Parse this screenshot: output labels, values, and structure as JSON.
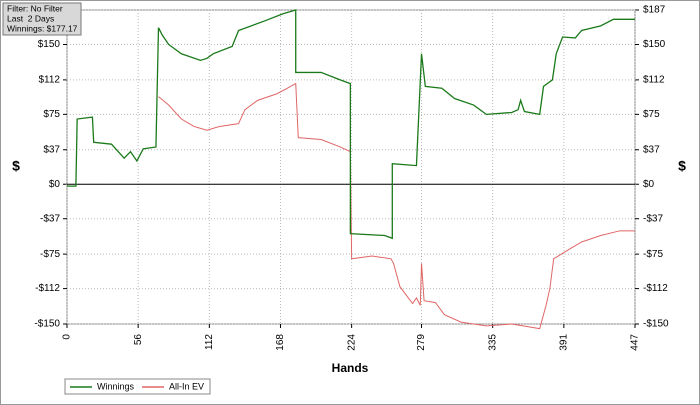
{
  "chart_data": {
    "type": "line",
    "info_box": [
      "Filter: No Filter",
      "Last  2 Days",
      "Winnings: $177.17"
    ],
    "x_label": "Hands",
    "y_label": "$",
    "xlim": [
      0,
      447
    ],
    "xticks": [
      0,
      56,
      112,
      168,
      224,
      279,
      335,
      391,
      447
    ],
    "ylim": [
      -150,
      187
    ],
    "yticks": [
      {
        "value": 187,
        "label": "$187"
      },
      {
        "value": 150,
        "label": "$150"
      },
      {
        "value": 112,
        "label": "$112"
      },
      {
        "value": 75,
        "label": "$75"
      },
      {
        "value": 37,
        "label": "$37"
      },
      {
        "value": 0,
        "label": "$0"
      },
      {
        "value": -37,
        "label": "-$37"
      },
      {
        "value": -75,
        "label": "-$75"
      },
      {
        "value": -112,
        "label": "-$112"
      },
      {
        "value": -150,
        "label": "-$150"
      }
    ],
    "grid": true,
    "legend": "bottom-left",
    "series": [
      {
        "name": "Winnings",
        "color": "#1a7a1a",
        "x": [
          0,
          7,
          8,
          20,
          21,
          35,
          45,
          50,
          55,
          60,
          70,
          72,
          75,
          80,
          90,
          105,
          110,
          115,
          130,
          135,
          145,
          155,
          170,
          180,
          180,
          200,
          215,
          223,
          223,
          250,
          256,
          256,
          275,
          279,
          282,
          295,
          305,
          320,
          330,
          350,
          355,
          357,
          360,
          372,
          375,
          382,
          385,
          390,
          400,
          405,
          420,
          430,
          447
        ],
        "values": [
          -2,
          -2,
          70,
          72,
          45,
          43,
          28,
          35,
          25,
          38,
          40,
          168,
          160,
          150,
          140,
          133,
          135,
          140,
          148,
          165,
          170,
          175,
          183,
          187,
          120,
          120,
          112,
          108,
          -53,
          -55,
          -58,
          22,
          20,
          140,
          105,
          103,
          92,
          85,
          75,
          77,
          80,
          90,
          78,
          75,
          105,
          112,
          140,
          158,
          157,
          165,
          170,
          177,
          177
        ]
      },
      {
        "name": "All-In EV",
        "color": "#e06666",
        "x": [
          72,
          80,
          90,
          100,
          110,
          120,
          135,
          140,
          150,
          165,
          172,
          180,
          182,
          200,
          215,
          223,
          224,
          240,
          255,
          257,
          262,
          272,
          275,
          278,
          279,
          281,
          290,
          297,
          310,
          330,
          350,
          372,
          377,
          380,
          383,
          395,
          405,
          420,
          435,
          447
        ],
        "values": [
          94,
          85,
          70,
          62,
          58,
          62,
          65,
          80,
          90,
          97,
          102,
          108,
          50,
          48,
          40,
          35,
          -80,
          -77,
          -80,
          -85,
          -110,
          -128,
          -122,
          -130,
          -85,
          -125,
          -127,
          -140,
          -148,
          -152,
          -150,
          -155,
          -130,
          -112,
          -80,
          -70,
          -62,
          -55,
          -50,
          -50
        ]
      }
    ]
  }
}
